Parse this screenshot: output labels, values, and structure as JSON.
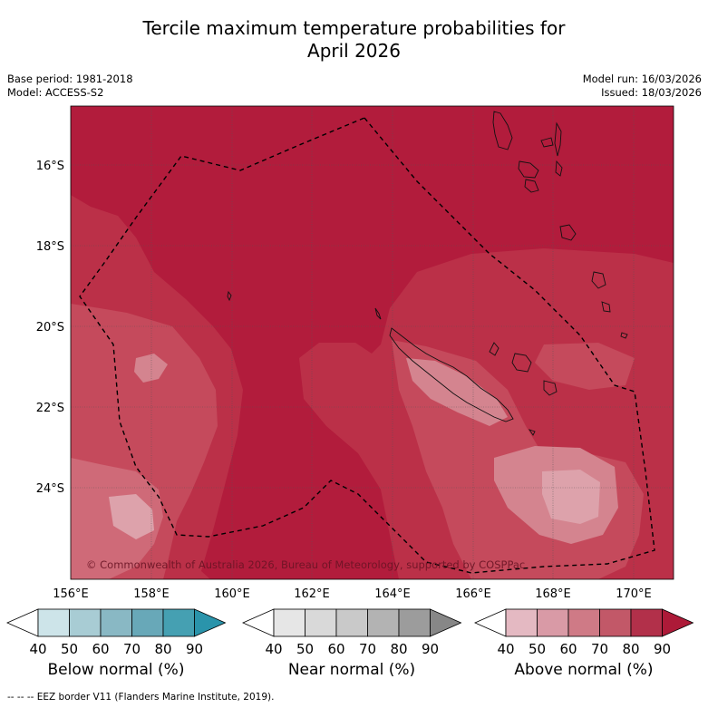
{
  "title_line1": "Tercile maximum temperature probabilities for",
  "title_line2": "April 2026",
  "base_period": "Base period: 1981-2018",
  "model": "Model: ACCESS-S2",
  "model_run": "Model run: 16/03/2026",
  "issued": "Issued: 18/03/2026",
  "copyright": "© Commonwealth of Australia 2026, Bureau of Meteorology, supported by COSPPac",
  "latitude_labels": [
    "16°S",
    "18°S",
    "20°S",
    "22°S",
    "24°S"
  ],
  "longitude_labels": [
    "156°E",
    "158°E",
    "160°E",
    "162°E",
    "164°E",
    "166°E",
    "168°E",
    "170°E"
  ],
  "colorbars": [
    {
      "label": "Below normal (%)",
      "ticks": [
        "40",
        "50",
        "60",
        "70",
        "80",
        "90"
      ],
      "colors": [
        "#ffffff",
        "#cde4e9",
        "#a8ccd4",
        "#89b8c4",
        "#68a8b8",
        "#45a0b2",
        "#2a94ab"
      ]
    },
    {
      "label": "Near normal (%)",
      "ticks": [
        "40",
        "50",
        "60",
        "70",
        "80",
        "90"
      ],
      "colors": [
        "#ffffff",
        "#e6e6e6",
        "#d9d9d9",
        "#c9c9c9",
        "#b3b3b3",
        "#9c9c9c",
        "#878787"
      ]
    },
    {
      "label": "Above normal (%)",
      "ticks": [
        "40",
        "50",
        "60",
        "70",
        "80",
        "90"
      ],
      "colors": [
        "#ffffff",
        "#e4b9c2",
        "#d99aa6",
        "#cf7a86",
        "#c25868",
        "#b2304a",
        "#ad1a38"
      ]
    }
  ],
  "footer": "-- -- -- EEZ border V11 (Flanders Marine Institute, 2019)."
}
